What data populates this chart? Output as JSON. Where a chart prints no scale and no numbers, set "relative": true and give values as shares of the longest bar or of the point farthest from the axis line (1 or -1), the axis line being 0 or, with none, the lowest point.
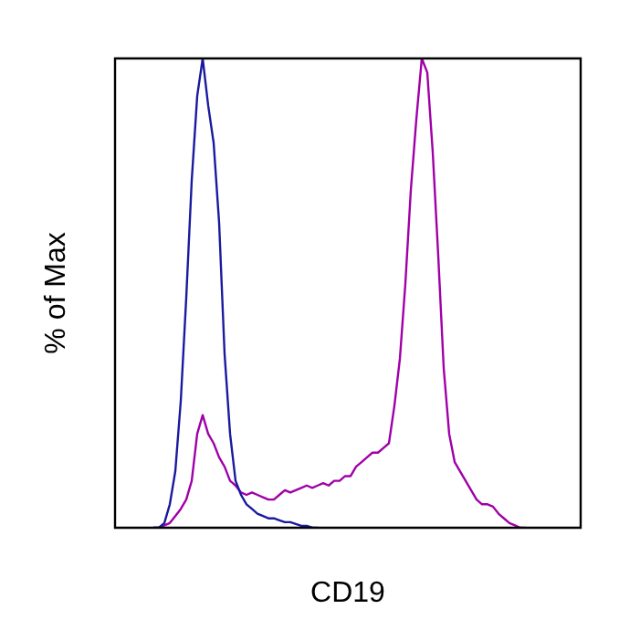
{
  "chart_data": {
    "type": "line",
    "xlabel": "CD19",
    "ylabel": "% of Max",
    "relative": true,
    "marker": "none",
    "categories": [
      null,
      null,
      null,
      null,
      null,
      null,
      null,
      null,
      null,
      null,
      null,
      null,
      null,
      null,
      null,
      null,
      null,
      null,
      null,
      null,
      null,
      null,
      null,
      null,
      null,
      null,
      null,
      null,
      null,
      null,
      null,
      null,
      null,
      null,
      null,
      null,
      null,
      null,
      null,
      null,
      null,
      null,
      null,
      null,
      null,
      null,
      null,
      null,
      null,
      null,
      null,
      null,
      null,
      null,
      null,
      null,
      null,
      null,
      null,
      null,
      null,
      null,
      null,
      null,
      null,
      null,
      null,
      null,
      null,
      null,
      null,
      null,
      null,
      null,
      null,
      null,
      null,
      null,
      null,
      null,
      null,
      null,
      null,
      null,
      null,
      null
    ],
    "series": [
      {
        "color": "#1a1aa0",
        "values": [
          null,
          null,
          null,
          null,
          null,
          null,
          null,
          0,
          0,
          0.01,
          0.05,
          0.12,
          0.27,
          0.49,
          0.74,
          0.92,
          1,
          0.9,
          0.82,
          0.65,
          0.37,
          0.2,
          0.1,
          0.07,
          0.05,
          0.04,
          0.03,
          0.025,
          0.02,
          0.02,
          0.016,
          0.012,
          0.012,
          0.008,
          0.004,
          0.004,
          0,
          0,
          null,
          null,
          null,
          null,
          null,
          null,
          null,
          null,
          null,
          null,
          null,
          null,
          null,
          null,
          null,
          null,
          null,
          null,
          null,
          null,
          null,
          null,
          null,
          null,
          null,
          null,
          null,
          null,
          null,
          null,
          null,
          null,
          null,
          null,
          null,
          null,
          null,
          null,
          null,
          null,
          null,
          null,
          null,
          null,
          null,
          null,
          null,
          null
        ]
      },
      {
        "color": "#a000a8",
        "values": [
          null,
          null,
          null,
          null,
          null,
          null,
          null,
          0,
          0,
          0.005,
          0.01,
          0.025,
          0.04,
          0.06,
          0.1,
          0.2,
          0.24,
          0.2,
          0.18,
          0.15,
          0.13,
          0.1,
          0.09,
          0.075,
          0.07,
          0.075,
          0.07,
          0.065,
          0.06,
          0.06,
          0.07,
          0.08,
          0.075,
          0.08,
          0.085,
          0.09,
          0.085,
          0.09,
          0.095,
          0.09,
          0.1,
          0.1,
          0.11,
          0.11,
          0.13,
          0.14,
          0.15,
          0.16,
          0.16,
          0.17,
          0.18,
          0.26,
          0.36,
          0.52,
          0.72,
          0.87,
          1,
          0.97,
          0.8,
          0.58,
          0.34,
          0.2,
          0.14,
          0.12,
          0.1,
          0.08,
          0.06,
          0.05,
          0.05,
          0.045,
          0.03,
          0.02,
          0.01,
          0.005,
          0,
          0,
          null,
          null,
          null,
          null,
          null,
          null,
          null,
          null,
          null,
          null
        ]
      }
    ]
  }
}
